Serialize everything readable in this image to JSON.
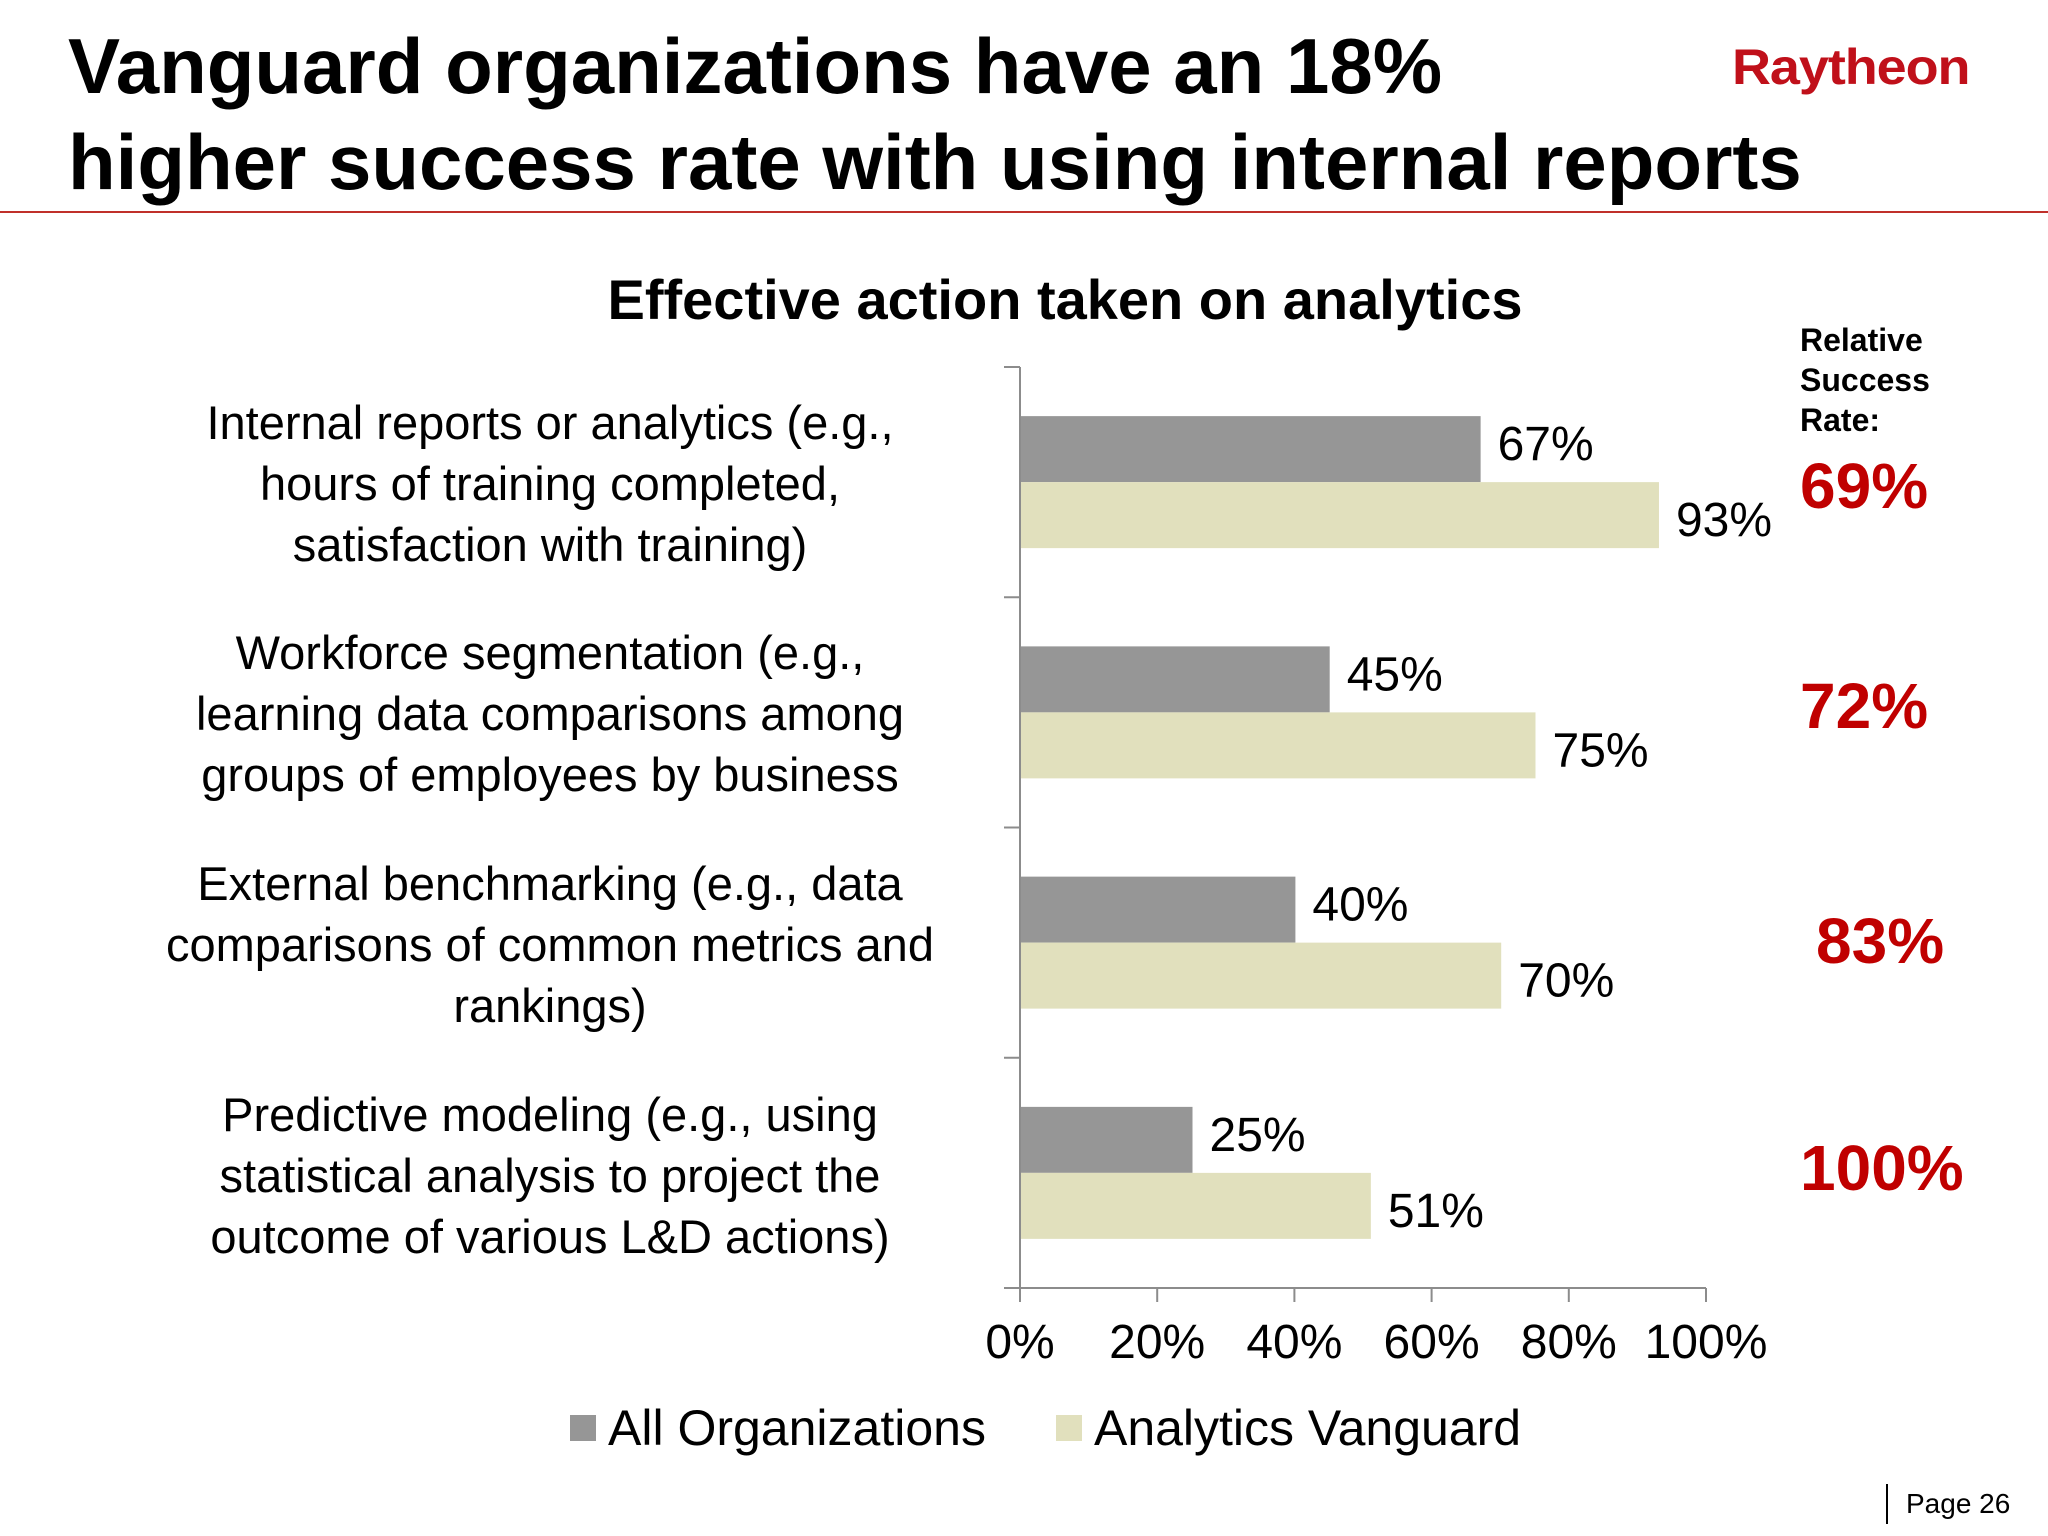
{
  "title_lines": [
    "Vanguard organizations have an 18%",
    "higher success rate with using internal reports"
  ],
  "logo_text": "Raytheon",
  "relative_header_lines": [
    "Relative",
    "Success",
    "Rate:"
  ],
  "relative_rates": [
    "69%",
    "72%",
    "83%",
    "100%"
  ],
  "page_label": "Page 26",
  "colors": {
    "all_orgs": "#969696",
    "vanguard": "#e1e0bd",
    "accent": "#c00000",
    "logo": "#c0101a"
  },
  "chart_data": {
    "type": "bar",
    "orientation": "horizontal",
    "title": "Effective action taken on analytics",
    "categories": [
      [
        "Internal reports or analytics (e.g.,",
        "hours of training completed,",
        "satisfaction with training)"
      ],
      [
        "Workforce segmentation (e.g.,",
        "learning data comparisons among",
        "groups of employees by business"
      ],
      [
        "External benchmarking (e.g., data",
        "comparisons of common metrics and",
        "rankings)"
      ],
      [
        "Predictive modeling (e.g., using",
        "statistical analysis to project the",
        "outcome of various L&D actions)"
      ]
    ],
    "series": [
      {
        "name": "All Organizations",
        "values": [
          67,
          45,
          40,
          25
        ],
        "labels": [
          "67%",
          "45%",
          "40%",
          "25%"
        ]
      },
      {
        "name": "Analytics Vanguard",
        "values": [
          93,
          75,
          70,
          51
        ],
        "labels": [
          "93%",
          "75%",
          "70%",
          "51%"
        ]
      }
    ],
    "xlim": [
      0,
      100
    ],
    "xticks": [
      0,
      20,
      40,
      60,
      80,
      100
    ],
    "xtick_labels": [
      "0%",
      "20%",
      "40%",
      "60%",
      "80%",
      "100%"
    ],
    "legend_position": "bottom",
    "grid": false
  }
}
